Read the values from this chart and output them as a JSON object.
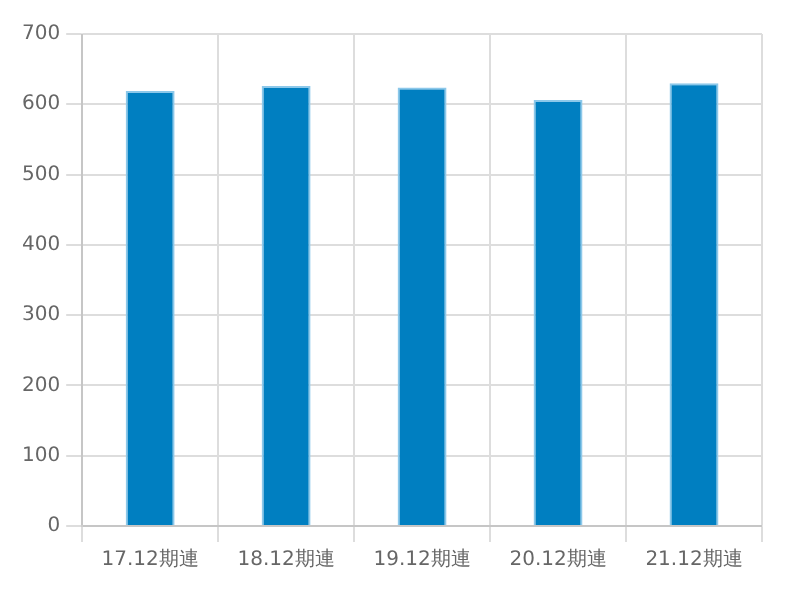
{
  "chart_data": {
    "type": "bar",
    "categories": [
      "17.12期連",
      "18.12期連",
      "19.12期連",
      "20.12期連",
      "21.12期連"
    ],
    "values": [
      619,
      626,
      624,
      606,
      630
    ],
    "color": "#007fc1",
    "ylim": [
      0,
      700
    ],
    "yticks": [
      0,
      100,
      200,
      300,
      400,
      500,
      600,
      700
    ],
    "grid": true
  }
}
